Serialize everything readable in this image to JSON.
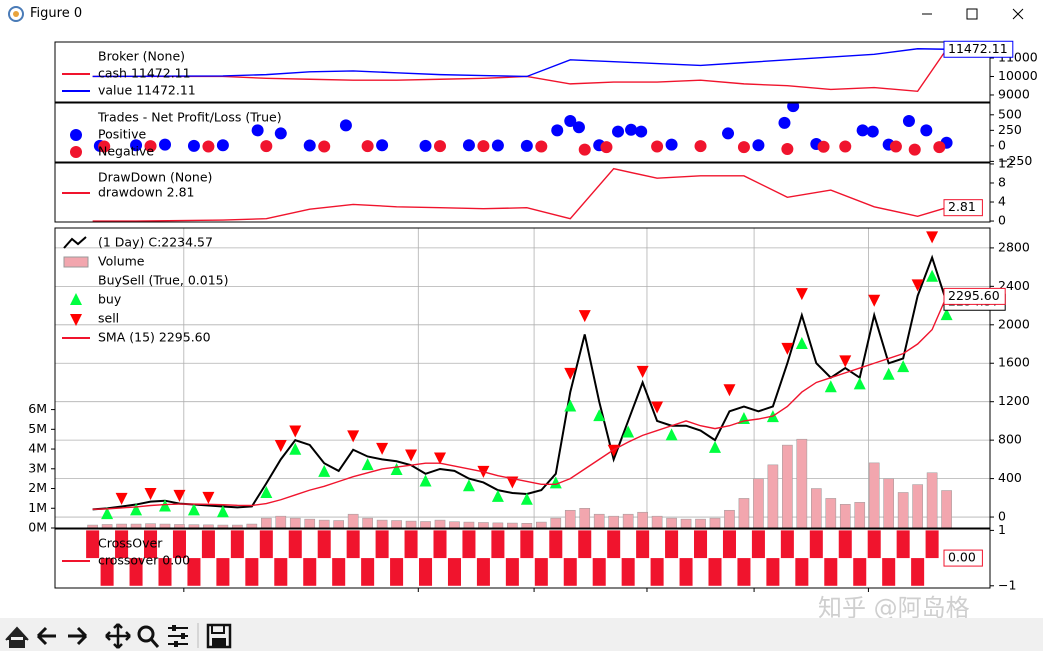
{
  "window": {
    "title": "Figure 0"
  },
  "watermark": "知乎 @阿岛格",
  "chart_data": [
    {
      "type": "line",
      "legend_title": "Broker (None)",
      "xlim": [
        -2.6,
        62
      ],
      "ylim": [
        8620,
        11865
      ],
      "yticks": [
        9000,
        10000,
        11000
      ],
      "x": [
        0,
        3,
        6,
        9,
        12,
        15,
        18,
        21,
        24,
        27,
        30,
        33,
        36,
        39,
        42,
        45,
        48,
        51,
        54,
        57,
        59
      ],
      "series": [
        {
          "name": "cash 11472.11",
          "color": "#f0142d",
          "values": [
            10000,
            10000,
            10000,
            10000,
            9900,
            9850,
            9800,
            9800,
            9850,
            9900,
            10000,
            9600,
            9700,
            9700,
            9800,
            9600,
            9500,
            9300,
            9400,
            9200,
            11472.11
          ]
        },
        {
          "name": "value 11472.11",
          "color": "#0000ff",
          "end_label": "11472.11",
          "values": [
            10000,
            10010,
            10020,
            10030,
            10100,
            10250,
            10300,
            10200,
            10100,
            10050,
            10000,
            10900,
            10800,
            10700,
            10600,
            10750,
            10900,
            11050,
            11200,
            11500,
            11472.11
          ]
        }
      ]
    },
    {
      "type": "scatter",
      "legend_title": "Trades - Net Profit/Loss (True)",
      "xlim": [
        -2.6,
        62
      ],
      "ylim": [
        -260,
        690
      ],
      "yticks": [
        {
          "value": -250,
          "label": "−250"
        },
        0,
        250,
        500
      ],
      "series": [
        {
          "name": "Positive",
          "color": "#0000ff",
          "marker": "circle",
          "x": [
            0.5,
            3,
            5,
            7,
            9,
            11.4,
            13,
            15,
            17.5,
            20,
            23,
            26,
            28,
            30,
            32.1,
            33,
            33.6,
            35,
            36.3,
            37.2,
            37.9,
            40,
            43.9,
            46,
            47.8,
            48.4,
            50,
            53.2,
            53.9,
            55,
            56.4,
            57.6,
            59
          ],
          "values": [
            0,
            10,
            20,
            0,
            10,
            250,
            200,
            5,
            330,
            10,
            0,
            10,
            5,
            0,
            250,
            400,
            300,
            10,
            230,
            260,
            230,
            20,
            200,
            10,
            370,
            640,
            30,
            250,
            230,
            20,
            400,
            250,
            50
          ]
        },
        {
          "name": "Negative",
          "color": "#f0142d",
          "marker": "circle",
          "x": [
            0.8,
            4,
            8,
            12,
            16,
            19,
            24,
            27,
            31,
            34,
            35.5,
            39,
            42,
            45,
            48,
            50.5,
            52,
            55.5,
            56.8,
            58.5
          ],
          "values": [
            -10,
            -5,
            -10,
            -5,
            -10,
            -5,
            -5,
            -5,
            -10,
            -60,
            -20,
            -10,
            -5,
            -20,
            -50,
            -15,
            -10,
            -10,
            -60,
            -20
          ]
        }
      ]
    },
    {
      "type": "line",
      "legend_title": "DrawDown (None)",
      "xlim": [
        -2.6,
        62
      ],
      "ylim": [
        -0.2,
        12.2
      ],
      "yticks": [
        0,
        4,
        8,
        12
      ],
      "x": [
        0,
        3,
        6,
        9,
        12,
        15,
        18,
        21,
        24,
        27,
        30,
        33,
        36,
        39,
        42,
        45,
        48,
        51,
        54,
        57,
        59
      ],
      "series": [
        {
          "name": "drawdown 2.81",
          "color": "#f0142d",
          "end_label": "2.81",
          "values": [
            0,
            0,
            0.1,
            0.2,
            0.5,
            2.5,
            3.5,
            3,
            2.8,
            2.6,
            2.8,
            0.5,
            11,
            9,
            9.5,
            9.5,
            5,
            6.5,
            3,
            1,
            2.81
          ]
        }
      ]
    },
    {
      "type": "line",
      "grid": true,
      "xlim": [
        -2.6,
        62
      ],
      "xticks": [
        6.3,
        22.5,
        30.5,
        38.3,
        45.7,
        53.6
      ],
      "ylim": [
        -114,
        3007
      ],
      "yticks": [
        0,
        400,
        800,
        1200,
        1600,
        2000,
        2400,
        2800
      ],
      "y2lim": [
        0,
        15200000
      ],
      "y2ticks": [
        {
          "value": 0,
          "label": "0M"
        },
        {
          "value": 1000000,
          "label": "1M"
        },
        {
          "value": 2000000,
          "label": "2M"
        },
        {
          "value": 3000000,
          "label": "3M"
        },
        {
          "value": 4000000,
          "label": "4M"
        },
        {
          "value": 5000000,
          "label": "5M"
        },
        {
          "value": 6000000,
          "label": "6M"
        }
      ],
      "x": [
        0,
        1,
        2,
        3,
        4,
        5,
        6,
        7,
        8,
        9,
        10,
        11,
        12,
        13,
        14,
        15,
        16,
        17,
        18,
        19,
        20,
        21,
        22,
        23,
        24,
        25,
        26,
        27,
        28,
        29,
        30,
        31,
        32,
        33,
        34,
        35,
        36,
        37,
        38,
        39,
        40,
        41,
        42,
        43,
        44,
        45,
        46,
        47,
        48,
        49,
        50,
        51,
        52,
        53,
        54,
        55,
        56,
        57,
        58,
        59
      ],
      "series": [
        {
          "name": "(1 Day) C:2234.57",
          "color": "#000000",
          "end_label": "2234.57",
          "values": [
            80,
            90,
            110,
            130,
            160,
            170,
            140,
            130,
            120,
            110,
            100,
            110,
            350,
            600,
            800,
            750,
            560,
            480,
            700,
            630,
            600,
            580,
            540,
            450,
            500,
            480,
            400,
            360,
            280,
            250,
            240,
            280,
            450,
            1300,
            1900,
            1200,
            600,
            1000,
            1400,
            1000,
            950,
            950,
            900,
            800,
            1100,
            1150,
            1100,
            1150,
            1600,
            2100,
            1600,
            1450,
            1550,
            1450,
            2100,
            1600,
            1650,
            2300,
            2700,
            2234.57
          ]
        },
        {
          "name": "Volume",
          "type": "bar",
          "axis": "y2",
          "color": "#f2a6ae",
          "values": [
            150000,
            180000,
            200000,
            200000,
            220000,
            200000,
            180000,
            170000,
            160000,
            150000,
            150000,
            200000,
            500000,
            600000,
            500000,
            450000,
            400000,
            380000,
            700000,
            500000,
            400000,
            380000,
            350000,
            330000,
            400000,
            320000,
            300000,
            280000,
            260000,
            250000,
            240000,
            300000,
            500000,
            900000,
            1000000,
            700000,
            600000,
            700000,
            800000,
            600000,
            500000,
            450000,
            450000,
            500000,
            900000,
            1500000,
            2500000,
            3200000,
            4200000,
            4500000,
            2000000,
            1500000,
            1200000,
            1300000,
            3300000,
            2500000,
            1800000,
            2200000,
            2800000,
            1900000
          ]
        },
        {
          "name": "buy",
          "legend_heading": "BuySell (True, 0.015)",
          "type": "scatter",
          "marker": "triangle-up",
          "color": "#00ff40",
          "x": [
            1,
            3,
            5,
            7,
            9,
            12,
            14,
            16,
            19,
            21,
            23,
            26,
            28,
            30,
            32,
            33,
            35,
            37,
            40,
            43,
            45,
            47,
            49,
            51,
            53,
            55,
            56,
            58,
            59
          ],
          "values": [
            30,
            70,
            110,
            70,
            50,
            250,
            700,
            470,
            540,
            490,
            370,
            320,
            210,
            180,
            350,
            1150,
            1050,
            880,
            850,
            720,
            1020,
            1040,
            1800,
            1350,
            1380,
            1480,
            1560,
            2500,
            2100
          ]
        },
        {
          "name": "sell",
          "type": "scatter",
          "marker": "triangle-down",
          "color": "#ff0000",
          "x": [
            2,
            4,
            6,
            8,
            13,
            14,
            18,
            20,
            22,
            24,
            27,
            29,
            33,
            34,
            36,
            38,
            39,
            44,
            48,
            49,
            52,
            54,
            57,
            58
          ],
          "values": [
            200,
            250,
            230,
            210,
            750,
            900,
            850,
            720,
            650,
            620,
            480,
            370,
            1500,
            2100,
            700,
            1520,
            1150,
            1330,
            1760,
            2330,
            1630,
            2260,
            2420,
            2920
          ]
        },
        {
          "name": "SMA (15) 2295.60",
          "color": "#f0142d",
          "end_label": "2295.60",
          "values": [
            80,
            85,
            95,
            105,
            120,
            130,
            135,
            135,
            132,
            128,
            122,
            120,
            140,
            180,
            230,
            280,
            320,
            370,
            420,
            460,
            500,
            520,
            540,
            560,
            560,
            530,
            500,
            470,
            430,
            400,
            370,
            340,
            340,
            400,
            500,
            600,
            700,
            780,
            850,
            900,
            950,
            1000,
            950,
            920,
            950,
            1000,
            1020,
            1050,
            1150,
            1300,
            1400,
            1450,
            1500,
            1550,
            1600,
            1650,
            1700,
            1800,
            1950,
            2295.6
          ]
        }
      ]
    },
    {
      "type": "bar",
      "legend_title": "CrossOver",
      "xlim": [
        -2.6,
        62
      ],
      "xticks": [
        6.3,
        22.5,
        30.5,
        38.3,
        45.7,
        53.6
      ],
      "ylim": [
        -1.08,
        1.05
      ],
      "yticks": [
        {
          "value": -1,
          "label": "−1"
        },
        1
      ],
      "x": [
        0,
        1,
        2,
        3,
        4,
        5,
        6,
        7,
        8,
        9,
        10,
        11,
        12,
        13,
        14,
        15,
        16,
        17,
        18,
        19,
        20,
        21,
        22,
        23,
        24,
        25,
        26,
        27,
        28,
        29,
        30,
        31,
        32,
        33,
        34,
        35,
        36,
        37,
        38,
        39,
        40,
        41,
        42,
        43,
        44,
        45,
        46,
        47,
        48,
        49,
        50,
        51,
        52,
        53,
        54,
        55,
        56,
        57,
        58,
        59
      ],
      "series": [
        {
          "name": "crossover 0.00",
          "color": "#f0142d",
          "end_label": "0.00",
          "values": [
            1,
            -1,
            1,
            -1,
            1,
            -1,
            1,
            -1,
            1,
            -1,
            1,
            -1,
            1,
            -1,
            1,
            -1,
            1,
            -1,
            1,
            -1,
            1,
            -1,
            1,
            -1,
            1,
            -1,
            1,
            -1,
            1,
            -1,
            1,
            -1,
            1,
            -1,
            1,
            -1,
            1,
            -1,
            1,
            -1,
            1,
            -1,
            1,
            -1,
            1,
            -1,
            1,
            -1,
            1,
            -1,
            1,
            -1,
            1,
            -1,
            1,
            -1,
            1,
            -1,
            1,
            0
          ]
        }
      ]
    }
  ]
}
